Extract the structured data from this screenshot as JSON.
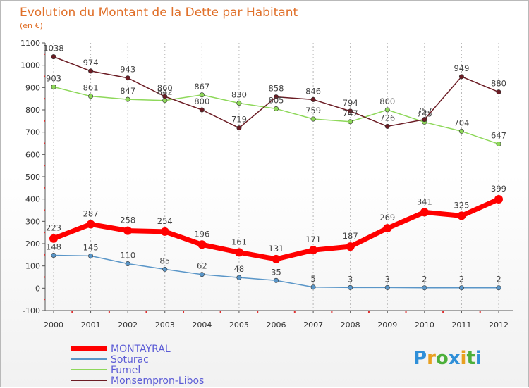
{
  "chart_data": {
    "type": "line",
    "title": "Evolution du Montant de la Dette par Habitant",
    "subtitle": "(en €)",
    "x": [
      "2000",
      "2001",
      "2002",
      "2003",
      "2004",
      "2005",
      "2006",
      "2007",
      "2008",
      "2009",
      "2010",
      "2011",
      "2012"
    ],
    "ylim": [
      -100,
      1100
    ],
    "yticks": [
      -100,
      0,
      100,
      200,
      300,
      400,
      500,
      600,
      700,
      800,
      900,
      1000,
      1100
    ],
    "grid": "vertical",
    "legend_position": "bottom-left",
    "series": [
      {
        "name": "MONTAYRAL",
        "color": "#ff0000",
        "values": [
          223,
          287,
          258,
          254,
          196,
          161,
          131,
          171,
          187,
          269,
          341,
          325,
          399
        ]
      },
      {
        "name": "Soturac",
        "color": "#5a96c8",
        "values": [
          148,
          145,
          110,
          85,
          62,
          48,
          35,
          5,
          3,
          3,
          2,
          2,
          2
        ]
      },
      {
        "name": "Fumel",
        "color": "#8ed85a",
        "values": [
          903,
          861,
          847,
          842,
          867,
          830,
          805,
          759,
          747,
          800,
          745,
          704,
          647
        ]
      },
      {
        "name": "Monsempron-Libos",
        "color": "#6b1c24",
        "values": [
          1038,
          974,
          943,
          860,
          800,
          719,
          858,
          846,
          794,
          726,
          757,
          949,
          880
        ]
      }
    ]
  },
  "brand": {
    "logo_text": "Proxiti"
  }
}
